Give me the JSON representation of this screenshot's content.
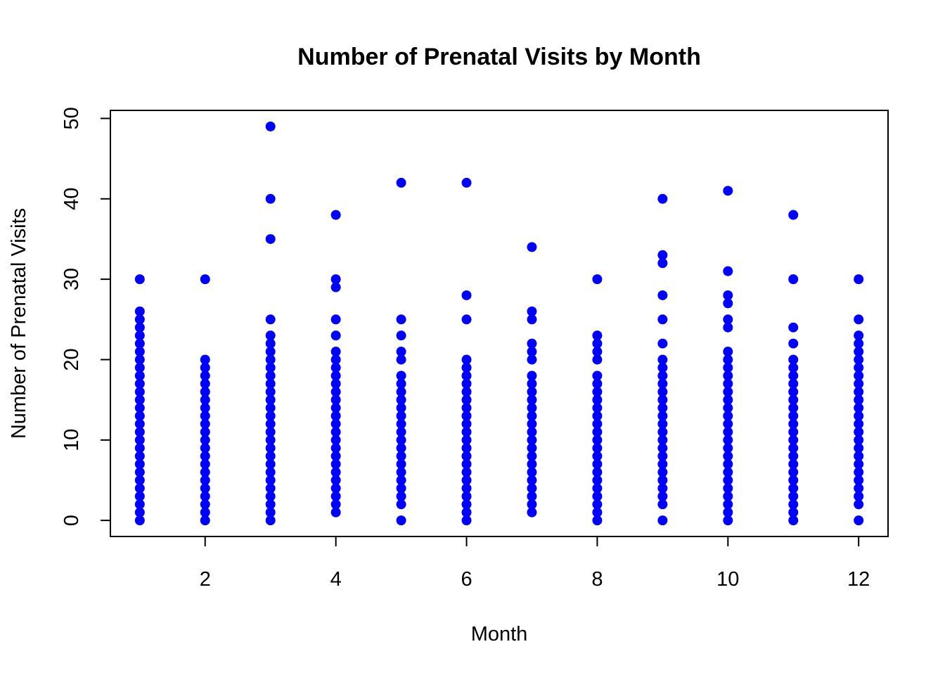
{
  "chart_data": {
    "type": "scatter",
    "title": "Number of Prenatal Visits by Month",
    "xlabel": "Month",
    "ylabel": "Number of Prenatal Visits",
    "xlim": [
      0.55,
      12.45
    ],
    "ylim": [
      -2,
      51
    ],
    "x_ticks": [
      2,
      4,
      6,
      8,
      10,
      12
    ],
    "y_ticks": [
      0,
      10,
      20,
      30,
      40,
      50
    ],
    "grid": false,
    "point_color": "#0000ff",
    "points_by_month": [
      {
        "month": 1,
        "values": [
          0,
          1,
          2,
          3,
          4,
          5,
          6,
          7,
          8,
          9,
          10,
          11,
          12,
          13,
          14,
          15,
          16,
          17,
          18,
          19,
          20,
          21,
          22,
          23,
          24,
          25,
          26,
          30
        ]
      },
      {
        "month": 2,
        "values": [
          0,
          1,
          2,
          3,
          4,
          5,
          6,
          7,
          8,
          9,
          10,
          11,
          12,
          13,
          14,
          15,
          16,
          17,
          18,
          19,
          20,
          30
        ]
      },
      {
        "month": 3,
        "values": [
          0,
          1,
          2,
          3,
          4,
          5,
          6,
          7,
          8,
          9,
          10,
          11,
          12,
          13,
          14,
          15,
          16,
          17,
          18,
          19,
          20,
          21,
          22,
          23,
          25,
          35,
          40,
          49
        ]
      },
      {
        "month": 4,
        "values": [
          1,
          2,
          3,
          4,
          5,
          6,
          7,
          8,
          9,
          10,
          11,
          12,
          13,
          14,
          15,
          16,
          17,
          18,
          19,
          20,
          21,
          23,
          25,
          29,
          30,
          38
        ]
      },
      {
        "month": 5,
        "values": [
          0,
          2,
          3,
          4,
          5,
          6,
          7,
          8,
          9,
          10,
          11,
          12,
          13,
          14,
          15,
          16,
          17,
          18,
          20,
          21,
          23,
          25,
          42
        ]
      },
      {
        "month": 6,
        "values": [
          0,
          1,
          2,
          3,
          4,
          5,
          6,
          7,
          8,
          9,
          10,
          11,
          12,
          13,
          14,
          15,
          16,
          17,
          18,
          19,
          20,
          25,
          28,
          42
        ]
      },
      {
        "month": 7,
        "values": [
          1,
          2,
          3,
          4,
          5,
          6,
          7,
          8,
          9,
          10,
          11,
          12,
          13,
          14,
          15,
          16,
          17,
          18,
          20,
          21,
          22,
          25,
          26,
          34
        ]
      },
      {
        "month": 8,
        "values": [
          0,
          1,
          2,
          3,
          4,
          5,
          6,
          7,
          8,
          9,
          10,
          11,
          12,
          13,
          14,
          15,
          16,
          17,
          18,
          20,
          21,
          22,
          23,
          30
        ]
      },
      {
        "month": 9,
        "values": [
          0,
          2,
          3,
          4,
          5,
          6,
          7,
          8,
          9,
          10,
          11,
          12,
          13,
          14,
          15,
          16,
          17,
          18,
          19,
          20,
          22,
          25,
          28,
          32,
          33,
          40
        ]
      },
      {
        "month": 10,
        "values": [
          0,
          1,
          2,
          3,
          4,
          5,
          6,
          7,
          8,
          9,
          10,
          11,
          12,
          13,
          14,
          15,
          16,
          17,
          18,
          19,
          20,
          21,
          24,
          25,
          27,
          28,
          31,
          41
        ]
      },
      {
        "month": 11,
        "values": [
          0,
          1,
          2,
          3,
          4,
          5,
          6,
          7,
          8,
          9,
          10,
          11,
          12,
          13,
          14,
          15,
          16,
          17,
          18,
          19,
          20,
          22,
          24,
          30,
          38
        ]
      },
      {
        "month": 12,
        "values": [
          0,
          2,
          3,
          4,
          5,
          6,
          7,
          8,
          9,
          10,
          11,
          12,
          13,
          14,
          15,
          16,
          17,
          18,
          19,
          20,
          21,
          22,
          23,
          25,
          30
        ]
      }
    ]
  }
}
